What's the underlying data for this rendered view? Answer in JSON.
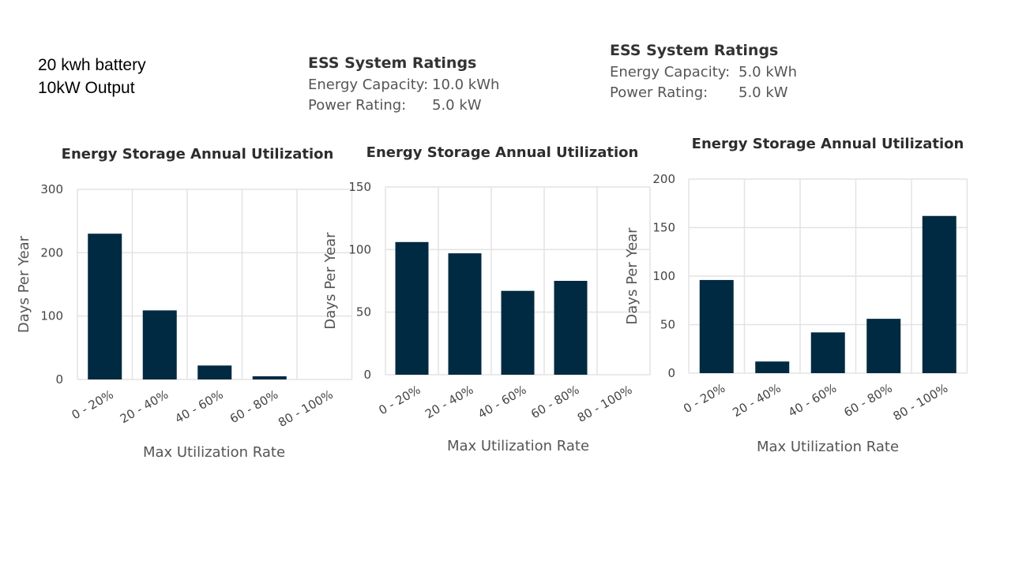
{
  "note": {
    "line1": "20 kwh battery",
    "line2": "10kW Output"
  },
  "ratings": [
    {
      "title": "ESS System Ratings",
      "energy_label": "Energy Capacity:",
      "energy_value": "10.0 kWh",
      "power_label": "Power Rating:",
      "power_value": "5.0 kW"
    },
    {
      "title": "ESS System Ratings",
      "energy_label": "Energy Capacity:",
      "energy_value": "5.0 kWh",
      "power_label": "Power Rating:",
      "power_value": "5.0 kW"
    }
  ],
  "colors": {
    "bar": "#002a41",
    "grid": "#e3e3e3"
  },
  "chart_data": [
    {
      "type": "bar",
      "title": "Energy Storage Annual Utilization",
      "xlabel": "Max Utilization Rate",
      "ylabel": "Days Per Year",
      "categories": [
        "0 - 20%",
        "20 - 40%",
        "40 - 60%",
        "60 - 80%",
        "80 - 100%"
      ],
      "values": [
        230,
        109,
        22,
        5,
        0
      ],
      "ylim": [
        0,
        300
      ],
      "yticks": [
        0,
        100,
        200,
        300
      ],
      "grid": true
    },
    {
      "type": "bar",
      "title": "Energy Storage Annual Utilization",
      "xlabel": "Max Utilization Rate",
      "ylabel": "Days Per Year",
      "categories": [
        "0 - 20%",
        "20 - 40%",
        "40 - 60%",
        "60 - 80%",
        "80 - 100%"
      ],
      "values": [
        106,
        97,
        67,
        75,
        0
      ],
      "ylim": [
        0,
        150
      ],
      "yticks": [
        0,
        50,
        100,
        150
      ],
      "grid": true
    },
    {
      "type": "bar",
      "title": "Energy Storage Annual Utilization",
      "xlabel": "Max Utilization Rate",
      "ylabel": "Days Per Year",
      "categories": [
        "0 - 20%",
        "20 - 40%",
        "40 - 60%",
        "60 - 80%",
        "80 - 100%"
      ],
      "values": [
        96,
        12,
        42,
        56,
        162
      ],
      "ylim": [
        0,
        200
      ],
      "yticks": [
        0,
        50,
        100,
        150,
        200
      ],
      "grid": true
    }
  ]
}
